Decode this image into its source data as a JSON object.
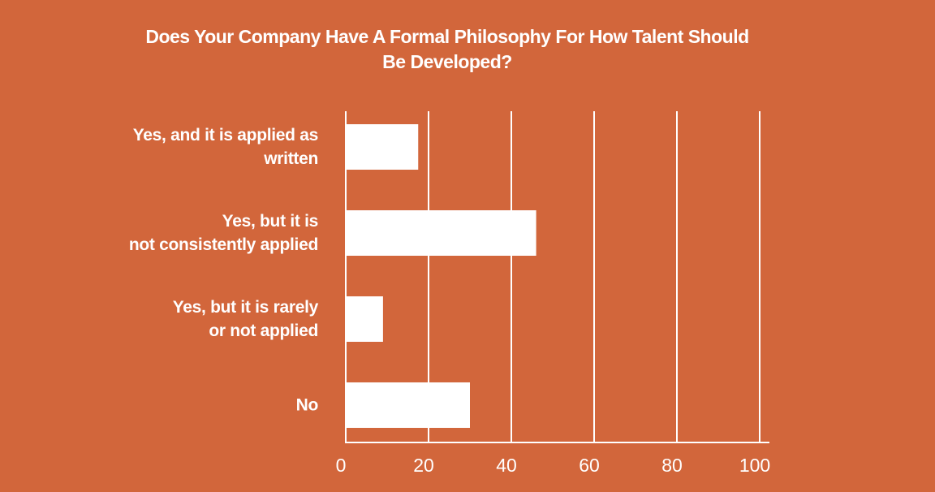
{
  "chart_data": {
    "type": "bar",
    "orientation": "horizontal",
    "title": "Does Your Company Have A Formal Philosophy For How Talent Should\nBe Developed?",
    "categories": [
      "Yes, and it is applied as\nwritten",
      "Yes, but it is\nnot consistently applied",
      "Yes, but it is rarely\nor not applied",
      "No"
    ],
    "values": [
      17.5,
      46,
      9,
      30
    ],
    "color": "#ffffff",
    "xlim": [
      0,
      100
    ],
    "xticks": [
      0,
      20,
      40,
      60,
      80,
      100
    ],
    "grid": true
  }
}
